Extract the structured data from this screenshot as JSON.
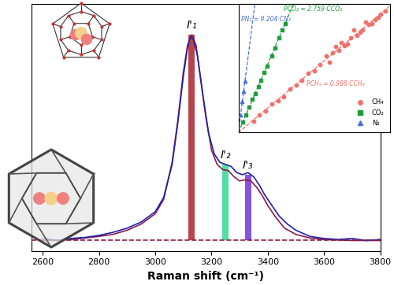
{
  "chart_data": [
    {
      "type": "line",
      "xlabel": "Raman shift (cm⁻¹)",
      "xlim": [
        2560,
        3800
      ],
      "xticks": [
        2600,
        2800,
        3000,
        3200,
        3400,
        3600,
        3800
      ],
      "ylim": [
        -0.05,
        1.15
      ],
      "tick_labels": "x",
      "series": [
        {
          "color": "#8b1a4a",
          "x": [
            2600,
            2700,
            2800,
            2850,
            2900,
            2950,
            3000,
            3030,
            3060,
            3080,
            3100,
            3115,
            3130,
            3145,
            3160,
            3180,
            3200,
            3220,
            3240,
            3260,
            3280,
            3300,
            3320,
            3340,
            3360,
            3380,
            3400,
            3430,
            3460,
            3500,
            3550,
            3600,
            3700,
            3800
          ],
          "values": [
            0.0,
            0.005,
            0.02,
            0.03,
            0.05,
            0.08,
            0.13,
            0.2,
            0.38,
            0.58,
            0.82,
            0.95,
            1.0,
            0.95,
            0.8,
            0.6,
            0.44,
            0.37,
            0.345,
            0.34,
            0.31,
            0.29,
            0.295,
            0.29,
            0.26,
            0.22,
            0.17,
            0.11,
            0.06,
            0.03,
            0.012,
            0.005,
            0.0,
            0.0
          ]
        },
        {
          "color": "#2020b0",
          "x": [
            2600,
            2650,
            2700,
            2750,
            2800,
            2850,
            2900,
            2950,
            3000,
            3030,
            3060,
            3080,
            3100,
            3115,
            3125,
            3135,
            3150,
            3170,
            3190,
            3210,
            3230,
            3250,
            3270,
            3290,
            3310,
            3330,
            3350,
            3370,
            3390,
            3410,
            3440,
            3470,
            3500,
            3550,
            3600,
            3650,
            3700,
            3750,
            3800
          ],
          "values": [
            0.01,
            0.0,
            0.01,
            0.015,
            0.025,
            0.04,
            0.06,
            0.09,
            0.14,
            0.21,
            0.37,
            0.57,
            0.8,
            0.94,
            0.99,
            0.98,
            0.9,
            0.7,
            0.52,
            0.42,
            0.38,
            0.37,
            0.36,
            0.33,
            0.32,
            0.33,
            0.31,
            0.27,
            0.22,
            0.18,
            0.12,
            0.08,
            0.05,
            0.02,
            0.01,
            0.005,
            0.01,
            0.0,
            0.005
          ]
        },
        {
          "type": "line",
          "line_style": "dashed",
          "color": "#8b1a4a",
          "x": [
            2560,
            3800
          ],
          "values": [
            0,
            0
          ]
        },
        {
          "type": "bar",
          "x": [
            3130,
            3250,
            3330
          ],
          "values": [
            1.0,
            0.37,
            0.32
          ],
          "colors": [
            "#b0303a",
            "#3ddc97",
            "#7b3fd6"
          ]
        }
      ],
      "annotations": [
        {
          "text": "I'₁",
          "x": 3130,
          "y": 1.02
        },
        {
          "text": "I'₂",
          "x": 3250,
          "y": 0.39
        },
        {
          "text": "I'₃",
          "x": 3330,
          "y": 0.34
        }
      ]
    },
    {
      "type": "scatter",
      "xlim": [
        0,
        100
      ],
      "ylim": [
        0,
        100
      ],
      "tick_labels": false,
      "legend": "lower right",
      "series": [
        {
          "name": "CH₄",
          "color": "#f0706a",
          "marker": "circle",
          "slope": 0.988,
          "x": [
            10,
            14,
            18,
            22,
            26,
            30,
            34,
            38,
            42,
            46,
            50,
            54,
            58,
            62,
            66,
            70,
            74,
            78,
            82,
            86,
            90,
            94,
            97,
            60,
            64,
            68,
            72,
            76,
            80,
            84,
            88,
            92
          ],
          "values": [
            9,
            14,
            17,
            22,
            25,
            28,
            34,
            37,
            41,
            46,
            48,
            53,
            60,
            62,
            64,
            68,
            74,
            76,
            80,
            84,
            88,
            92,
            95,
            55,
            67,
            70,
            69,
            80,
            78,
            86,
            85,
            90
          ]
        },
        {
          "name": "CO₂",
          "color": "#1e9e3a",
          "marker": "square",
          "slope": 2.759,
          "x": [
            3,
            5,
            7,
            9,
            11,
            13,
            15,
            17,
            19,
            22,
            24,
            27,
            29,
            31
          ],
          "values": [
            8,
            14,
            20,
            26,
            30,
            36,
            41,
            47,
            52,
            60,
            66,
            74,
            80,
            85
          ]
        },
        {
          "name": "N₂",
          "color": "#4a6fd8",
          "marker": "triangle",
          "slope": 9.204,
          "x": [
            1.5,
            2.5,
            3.5,
            4.5
          ],
          "values": [
            14,
            24,
            32,
            40
          ]
        }
      ],
      "annotations": [
        {
          "text": "PN₂ = 9.204·CN₂",
          "x": 2,
          "y": 88,
          "color": "#4a6fd8"
        },
        {
          "text": "PCO₂ = 2.759·CCO₂",
          "x": 30,
          "y": 96,
          "color": "#1e9e3a"
        },
        {
          "text": "PCH₄ = 0.988·CCH₄",
          "x": 45,
          "y": 38,
          "color": "#f0706a"
        }
      ]
    }
  ]
}
